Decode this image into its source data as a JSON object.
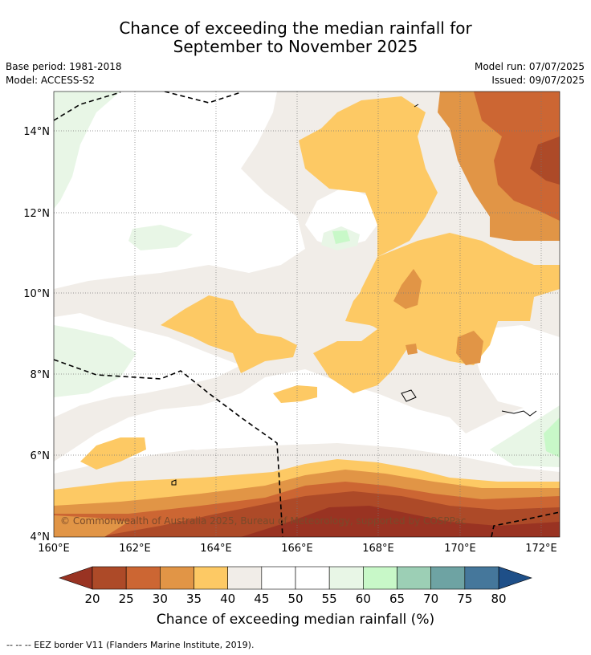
{
  "header": {
    "title_line1": "Chance of exceeding the median rainfall for",
    "title_line2": "September to November 2025",
    "base_period": "Base period: 1981-2018",
    "model": "Model: ACCESS-S2",
    "model_run": "Model run: 07/07/2025",
    "issued": "Issued: 09/07/2025"
  },
  "map": {
    "lon_ticks": [
      "160°E",
      "162°E",
      "164°E",
      "166°E",
      "168°E",
      "170°E",
      "172°E"
    ],
    "lat_ticks": [
      "14°N",
      "12°N",
      "10°N",
      "8°N",
      "6°N",
      "4°N"
    ],
    "copyright": "© Commonwealth of Australia 2025, Bureau of Meteorology, supported by COSPPac"
  },
  "colorbar": {
    "ticks": [
      "20",
      "25",
      "30",
      "35",
      "40",
      "45",
      "50",
      "55",
      "60",
      "65",
      "70",
      "75",
      "80"
    ],
    "label": "Chance of exceeding median rainfall (%)",
    "colors": [
      "#ad4a28",
      "#cc6633",
      "#e19546",
      "#fdc964",
      "#f1ede8",
      "#ffffff",
      "#ffffff",
      "#e8f6e6",
      "#c8f8c8",
      "#9ccfb5",
      "#6ea3a3",
      "#45779b"
    ],
    "under_color": "#993322",
    "over_color": "#1e4f88"
  },
  "footer": {
    "legend": "--  --  -- EEZ border V11 (Flanders Marine Institute, 2019)."
  }
}
